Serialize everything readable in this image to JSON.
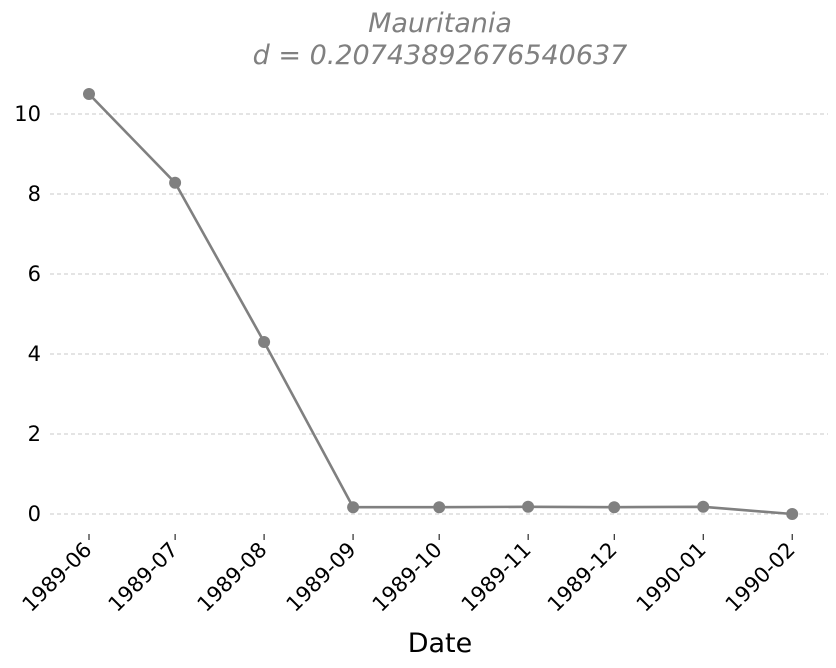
{
  "chart_data": {
    "type": "line",
    "title": "Mauritania",
    "subtitle": "d = 0.20743892676540637",
    "xlabel": "Date",
    "ylabel": "",
    "x": [
      "1989-06",
      "1989-07",
      "1989-08",
      "1989-09",
      "1989-10",
      "1989-11",
      "1989-12",
      "1990-01",
      "1990-02"
    ],
    "x_dates": [
      "1989-06-01",
      "1989-07-01",
      "1989-08-01",
      "1989-09-01",
      "1989-10-01",
      "1989-11-01",
      "1989-12-01",
      "1990-01-01",
      "1990-02-01"
    ],
    "series": [
      {
        "values": [
          10.5,
          8.28,
          4.3,
          0.17,
          0.17,
          0.18,
          0.17,
          0.18,
          0.0
        ],
        "color": "#808080"
      }
    ],
    "yticks": [
      0,
      2,
      4,
      6,
      8,
      10
    ],
    "ylim": [
      -0.6,
      11.2
    ],
    "grid": "horizontal-dashed",
    "legend": "none",
    "colors": {
      "series": "#808080",
      "grid": "#c8c8c8",
      "title": "#808080"
    }
  }
}
